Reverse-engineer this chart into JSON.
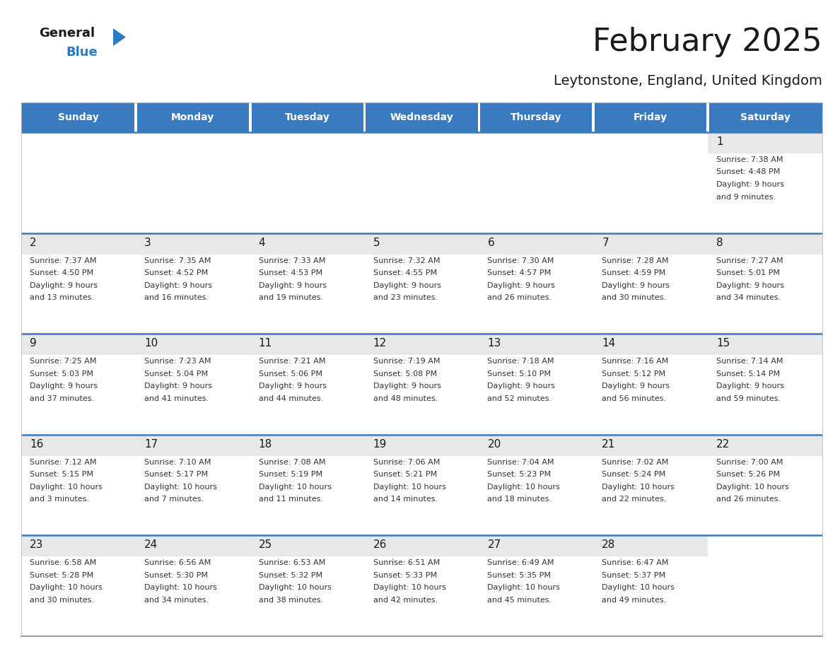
{
  "title": "February 2025",
  "subtitle": "Leytonstone, England, United Kingdom",
  "header_bg": "#3a7bbf",
  "header_text": "#ffffff",
  "day_num_bg": "#e8e8e8",
  "cell_bg": "#ffffff",
  "day_names": [
    "Sunday",
    "Monday",
    "Tuesday",
    "Wednesday",
    "Thursday",
    "Friday",
    "Saturday"
  ],
  "title_color": "#1a1a1a",
  "subtitle_color": "#1a1a1a",
  "day_number_color": "#1a1a1a",
  "cell_text_color": "#333333",
  "separator_color": "#3a7bbf",
  "logo_text_color": "#1a1a1a",
  "logo_blue_color": "#2b7bbf",
  "calendar": [
    [
      null,
      null,
      null,
      null,
      null,
      null,
      {
        "day": 1,
        "sunrise": "7:38 AM",
        "sunset": "4:48 PM",
        "daylight": "9 hours",
        "daylight2": "and 9 minutes."
      }
    ],
    [
      {
        "day": 2,
        "sunrise": "7:37 AM",
        "sunset": "4:50 PM",
        "daylight": "9 hours",
        "daylight2": "and 13 minutes."
      },
      {
        "day": 3,
        "sunrise": "7:35 AM",
        "sunset": "4:52 PM",
        "daylight": "9 hours",
        "daylight2": "and 16 minutes."
      },
      {
        "day": 4,
        "sunrise": "7:33 AM",
        "sunset": "4:53 PM",
        "daylight": "9 hours",
        "daylight2": "and 19 minutes."
      },
      {
        "day": 5,
        "sunrise": "7:32 AM",
        "sunset": "4:55 PM",
        "daylight": "9 hours",
        "daylight2": "and 23 minutes."
      },
      {
        "day": 6,
        "sunrise": "7:30 AM",
        "sunset": "4:57 PM",
        "daylight": "9 hours",
        "daylight2": "and 26 minutes."
      },
      {
        "day": 7,
        "sunrise": "7:28 AM",
        "sunset": "4:59 PM",
        "daylight": "9 hours",
        "daylight2": "and 30 minutes."
      },
      {
        "day": 8,
        "sunrise": "7:27 AM",
        "sunset": "5:01 PM",
        "daylight": "9 hours",
        "daylight2": "and 34 minutes."
      }
    ],
    [
      {
        "day": 9,
        "sunrise": "7:25 AM",
        "sunset": "5:03 PM",
        "daylight": "9 hours",
        "daylight2": "and 37 minutes."
      },
      {
        "day": 10,
        "sunrise": "7:23 AM",
        "sunset": "5:04 PM",
        "daylight": "9 hours",
        "daylight2": "and 41 minutes."
      },
      {
        "day": 11,
        "sunrise": "7:21 AM",
        "sunset": "5:06 PM",
        "daylight": "9 hours",
        "daylight2": "and 44 minutes."
      },
      {
        "day": 12,
        "sunrise": "7:19 AM",
        "sunset": "5:08 PM",
        "daylight": "9 hours",
        "daylight2": "and 48 minutes."
      },
      {
        "day": 13,
        "sunrise": "7:18 AM",
        "sunset": "5:10 PM",
        "daylight": "9 hours",
        "daylight2": "and 52 minutes."
      },
      {
        "day": 14,
        "sunrise": "7:16 AM",
        "sunset": "5:12 PM",
        "daylight": "9 hours",
        "daylight2": "and 56 minutes."
      },
      {
        "day": 15,
        "sunrise": "7:14 AM",
        "sunset": "5:14 PM",
        "daylight": "9 hours",
        "daylight2": "and 59 minutes."
      }
    ],
    [
      {
        "day": 16,
        "sunrise": "7:12 AM",
        "sunset": "5:15 PM",
        "daylight": "10 hours",
        "daylight2": "and 3 minutes."
      },
      {
        "day": 17,
        "sunrise": "7:10 AM",
        "sunset": "5:17 PM",
        "daylight": "10 hours",
        "daylight2": "and 7 minutes."
      },
      {
        "day": 18,
        "sunrise": "7:08 AM",
        "sunset": "5:19 PM",
        "daylight": "10 hours",
        "daylight2": "and 11 minutes."
      },
      {
        "day": 19,
        "sunrise": "7:06 AM",
        "sunset": "5:21 PM",
        "daylight": "10 hours",
        "daylight2": "and 14 minutes."
      },
      {
        "day": 20,
        "sunrise": "7:04 AM",
        "sunset": "5:23 PM",
        "daylight": "10 hours",
        "daylight2": "and 18 minutes."
      },
      {
        "day": 21,
        "sunrise": "7:02 AM",
        "sunset": "5:24 PM",
        "daylight": "10 hours",
        "daylight2": "and 22 minutes."
      },
      {
        "day": 22,
        "sunrise": "7:00 AM",
        "sunset": "5:26 PM",
        "daylight": "10 hours",
        "daylight2": "and 26 minutes."
      }
    ],
    [
      {
        "day": 23,
        "sunrise": "6:58 AM",
        "sunset": "5:28 PM",
        "daylight": "10 hours",
        "daylight2": "and 30 minutes."
      },
      {
        "day": 24,
        "sunrise": "6:56 AM",
        "sunset": "5:30 PM",
        "daylight": "10 hours",
        "daylight2": "and 34 minutes."
      },
      {
        "day": 25,
        "sunrise": "6:53 AM",
        "sunset": "5:32 PM",
        "daylight": "10 hours",
        "daylight2": "and 38 minutes."
      },
      {
        "day": 26,
        "sunrise": "6:51 AM",
        "sunset": "5:33 PM",
        "daylight": "10 hours",
        "daylight2": "and 42 minutes."
      },
      {
        "day": 27,
        "sunrise": "6:49 AM",
        "sunset": "5:35 PM",
        "daylight": "10 hours",
        "daylight2": "and 45 minutes."
      },
      {
        "day": 28,
        "sunrise": "6:47 AM",
        "sunset": "5:37 PM",
        "daylight": "10 hours",
        "daylight2": "and 49 minutes."
      },
      null
    ]
  ]
}
